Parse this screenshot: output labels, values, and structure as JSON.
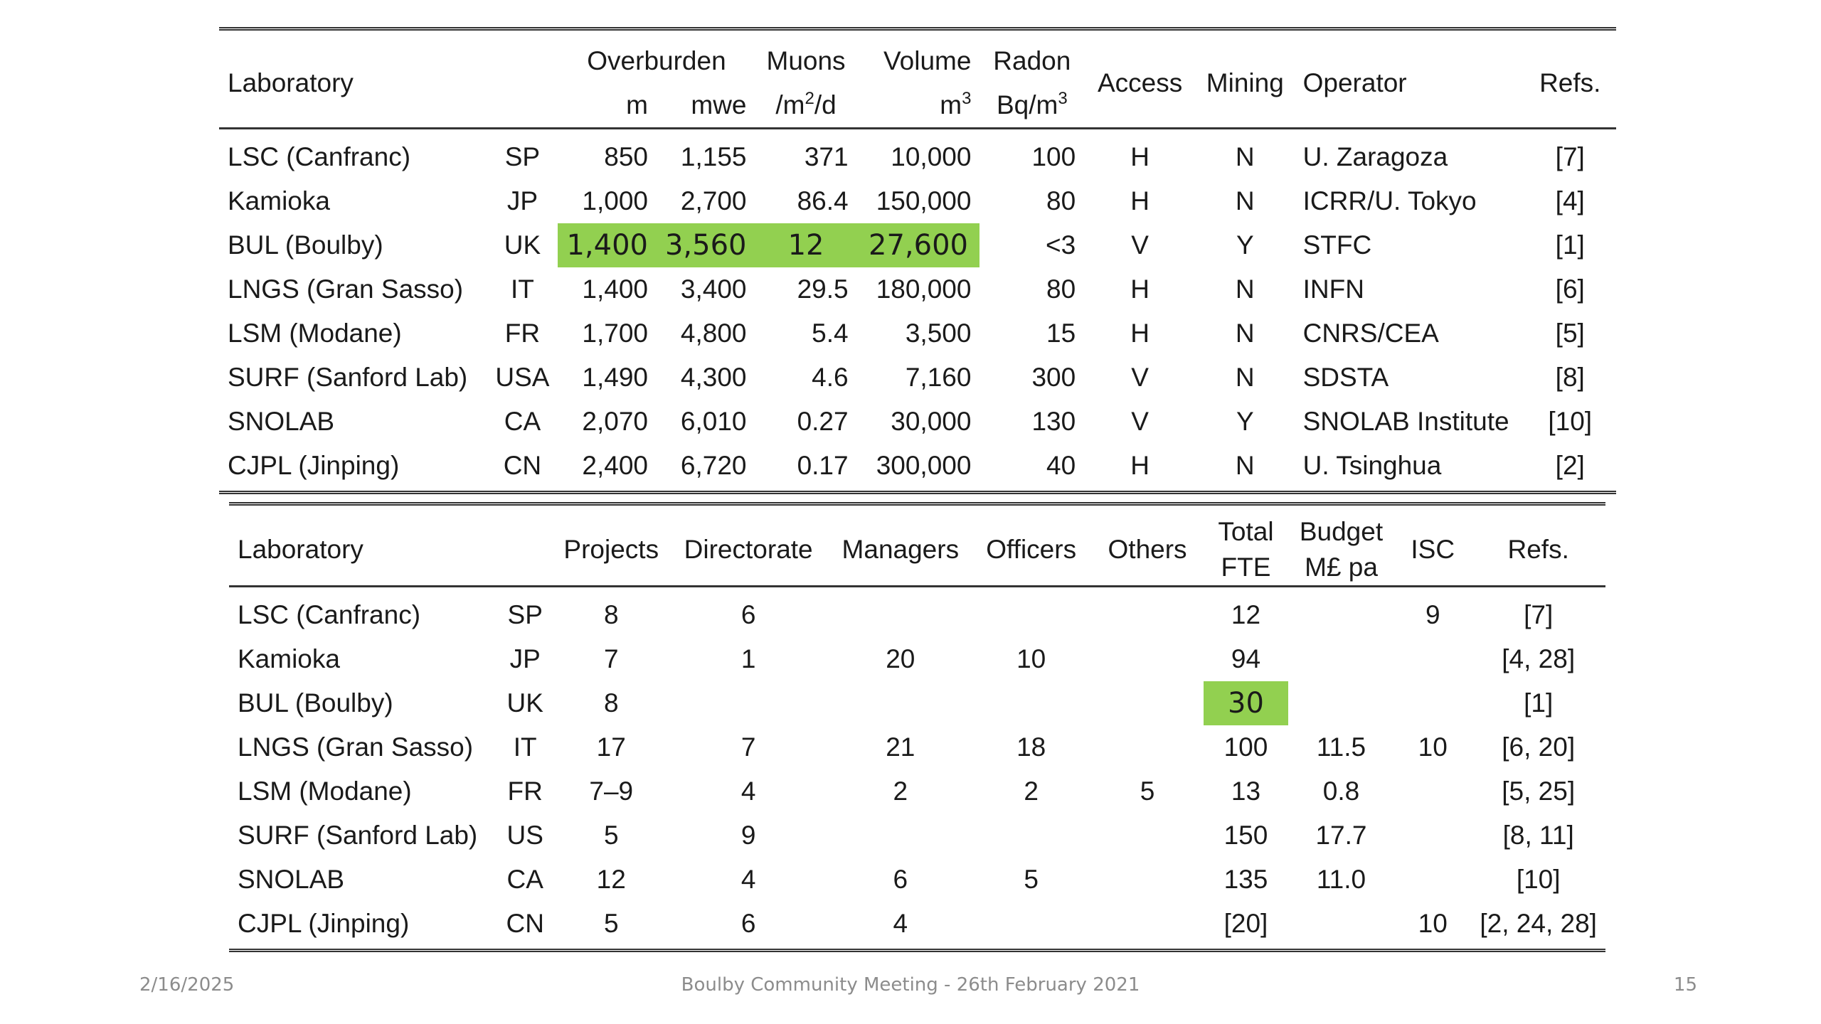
{
  "table1": {
    "header": {
      "laboratory": "Laboratory",
      "overburden": "Overburden",
      "muons": "Muons",
      "volume": "Volume",
      "radon": "Radon",
      "access": "Access",
      "mining": "Mining",
      "operator": "Operator",
      "refs": "Refs.",
      "unit_m": "m",
      "unit_mwe": "mwe",
      "unit_muons": "/m",
      "unit_muons_sup": "2",
      "unit_muons_tail": "/d",
      "unit_volume": "m",
      "unit_volume_sup": "3",
      "unit_radon": "Bq/m",
      "unit_radon_sup": "3"
    },
    "rows": [
      {
        "lab": "LSC (Canfranc)",
        "country": "SP",
        "m": "850",
        "mwe": "1,155",
        "muons": "371",
        "volume": "10,000",
        "radon": "100",
        "access": "H",
        "mining": "N",
        "operator": "U. Zaragoza",
        "refs": "[7]"
      },
      {
        "lab": "Kamioka",
        "country": "JP",
        "m": "1,000",
        "mwe": "2,700",
        "muons": "86.4",
        "volume": "150,000",
        "radon": "80",
        "access": "H",
        "mining": "N",
        "operator": "ICRR/U. Tokyo",
        "refs": "[4]"
      },
      {
        "lab": "BUL (Boulby)",
        "country": "UK",
        "m": "1,400",
        "mwe": "3,560",
        "muons": "12",
        "volume": "27,600",
        "radon": "<3",
        "access": "V",
        "mining": "Y",
        "operator": "STFC",
        "refs": "[1]"
      },
      {
        "lab": "LNGS (Gran Sasso)",
        "country": "IT",
        "m": "1,400",
        "mwe": "3,400",
        "muons": "29.5",
        "volume": "180,000",
        "radon": "80",
        "access": "H",
        "mining": "N",
        "operator": "INFN",
        "refs": "[6]"
      },
      {
        "lab": "LSM (Modane)",
        "country": "FR",
        "m": "1,700",
        "mwe": "4,800",
        "muons": "5.4",
        "volume": "3,500",
        "radon": "15",
        "access": "H",
        "mining": "N",
        "operator": "CNRS/CEA",
        "refs": "[5]"
      },
      {
        "lab": "SURF (Sanford Lab)",
        "country": "USA",
        "m": "1,490",
        "mwe": "4,300",
        "muons": "4.6",
        "volume": "7,160",
        "radon": "300",
        "access": "V",
        "mining": "N",
        "operator": "SDSTA",
        "refs": "[8]"
      },
      {
        "lab": "SNOLAB",
        "country": "CA",
        "m": "2,070",
        "mwe": "6,010",
        "muons": "0.27",
        "volume": "30,000",
        "radon": "130",
        "access": "V",
        "mining": "Y",
        "operator": "SNOLAB Institute",
        "refs": "[10]"
      },
      {
        "lab": "CJPL (Jinping)",
        "country": "CN",
        "m": "2,400",
        "mwe": "6,720",
        "muons": "0.17",
        "volume": "300,000",
        "radon": "40",
        "access": "H",
        "mining": "N",
        "operator": "U. Tsinghua",
        "refs": "[2]"
      }
    ]
  },
  "table2": {
    "header": {
      "laboratory": "Laboratory",
      "projects": "Projects",
      "directorate": "Directorate",
      "managers": "Managers",
      "officers": "Officers",
      "others": "Others",
      "total": "Total",
      "fte": "FTE",
      "budget": "Budget",
      "budget_unit": "M£ pa",
      "isc": "ISC",
      "refs": "Refs."
    },
    "rows": [
      {
        "lab": "LSC (Canfranc)",
        "country": "SP",
        "projects": "8",
        "directorate": "6",
        "managers": "",
        "officers": "",
        "others": "",
        "fte": "12",
        "budget": "",
        "isc": "9",
        "refs": "[7]"
      },
      {
        "lab": "Kamioka",
        "country": "JP",
        "projects": "7",
        "directorate": "1",
        "managers": "20",
        "officers": "10",
        "others": "",
        "fte": "94",
        "budget": "",
        "isc": "",
        "refs": "[4, 28]"
      },
      {
        "lab": "BUL (Boulby)",
        "country": "UK",
        "projects": "8",
        "directorate": "",
        "managers": "",
        "officers": "",
        "others": "",
        "fte": "30",
        "budget": "",
        "isc": "",
        "refs": "[1]"
      },
      {
        "lab": "LNGS (Gran Sasso)",
        "country": "IT",
        "projects": "17",
        "directorate": "7",
        "managers": "21",
        "officers": "18",
        "others": "",
        "fte": "100",
        "budget": "11.5",
        "isc": "10",
        "refs": "[6, 20]"
      },
      {
        "lab": "LSM (Modane)",
        "country": "FR",
        "projects": "7–9",
        "directorate": "4",
        "managers": "2",
        "officers": "2",
        "others": "5",
        "fte": "13",
        "budget": "0.8",
        "isc": "",
        "refs": "[5, 25]"
      },
      {
        "lab": "SURF (Sanford Lab)",
        "country": "US",
        "projects": "5",
        "directorate": "9",
        "managers": "",
        "officers": "",
        "others": "",
        "fte": "150",
        "budget": "17.7",
        "isc": "",
        "refs": "[8, 11]"
      },
      {
        "lab": "SNOLAB",
        "country": "CA",
        "projects": "12",
        "directorate": "4",
        "managers": "6",
        "officers": "5",
        "others": "",
        "fte": "135",
        "budget": "11.0",
        "isc": "",
        "refs": "[10]"
      },
      {
        "lab": "CJPL (Jinping)",
        "country": "CN",
        "projects": "5",
        "directorate": "6",
        "managers": "4",
        "officers": "",
        "others": "",
        "fte": "[20]",
        "budget": "",
        "isc": "10",
        "refs": "[2, 24, 28]"
      }
    ]
  },
  "highlight_color": "#92d050",
  "footer": {
    "date": "2/16/2025",
    "title": "Boulby Community Meeting - 26th February 2021",
    "page": "15"
  }
}
